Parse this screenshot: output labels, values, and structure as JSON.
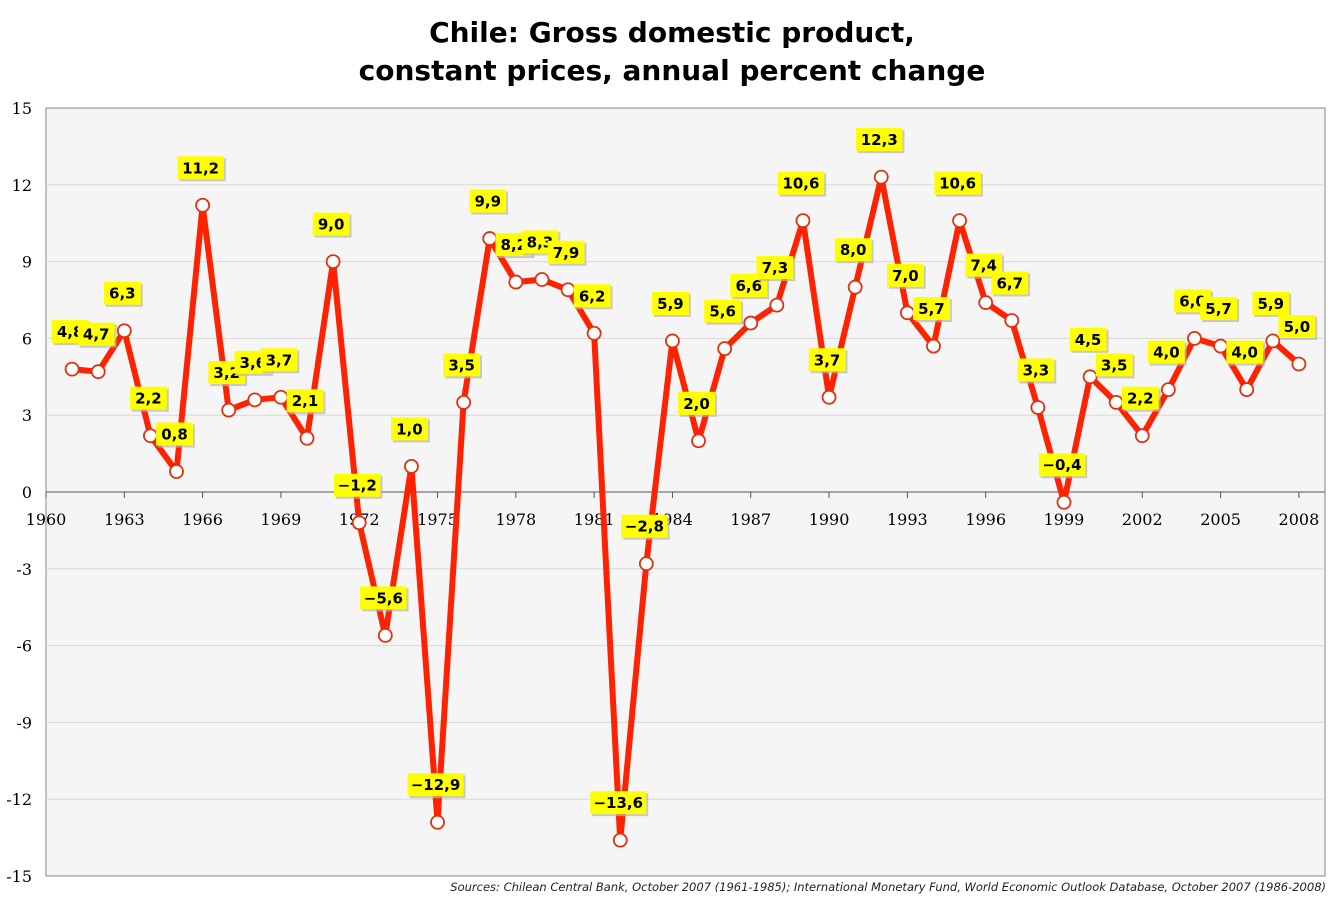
{
  "chart_data": {
    "type": "line",
    "title_line1": "Chile: Gross domestic product,",
    "title_line2": "constant prices, annual percent change",
    "xlabel": "",
    "ylabel": "",
    "xlim": [
      1960,
      2009
    ],
    "ylim": [
      -15,
      15
    ],
    "x_ticks": [
      "1960",
      "1963",
      "1966",
      "1969",
      "1972",
      "1975",
      "1978",
      "1981",
      "1984",
      "1987",
      "1990",
      "1993",
      "1996",
      "1999",
      "2002",
      "2005",
      "2008"
    ],
    "y_ticks": [
      "15",
      "12",
      "9",
      "6",
      "3",
      "0",
      "-3",
      "-6",
      "-9",
      "-12",
      "-15"
    ],
    "grid": true,
    "line_color": "#ff2200",
    "label_bg": "#ffff00",
    "plot_bg": "#f5f5f5",
    "series": [
      {
        "x": [
          1961,
          1962,
          1963,
          1964,
          1965,
          1966,
          1967,
          1968,
          1969,
          1970,
          1971,
          1972,
          1973,
          1974,
          1975,
          1976,
          1977,
          1978,
          1979,
          1980,
          1981,
          1982,
          1983,
          1984,
          1985,
          1986,
          1987,
          1988,
          1989,
          1990,
          1991,
          1992,
          1993,
          1994,
          1995,
          1996,
          1997,
          1998,
          1999,
          2000,
          2001,
          2002,
          2003,
          2004,
          2005,
          2006,
          2007,
          2008
        ],
        "values": [
          4.8,
          4.7,
          6.3,
          2.2,
          0.8,
          11.2,
          3.2,
          3.6,
          3.7,
          2.1,
          9.0,
          -1.2,
          -5.6,
          1.0,
          -12.9,
          3.5,
          9.9,
          8.2,
          8.3,
          7.9,
          6.2,
          -13.6,
          -2.8,
          5.9,
          2.0,
          5.6,
          6.6,
          7.3,
          10.6,
          3.7,
          8.0,
          12.3,
          7.0,
          5.7,
          10.6,
          7.4,
          6.7,
          3.3,
          -0.4,
          4.5,
          3.5,
          2.2,
          4.0,
          6.0,
          5.7,
          4.0,
          5.9,
          5.0
        ],
        "labels": [
          "4,8",
          "4,7",
          "6,3",
          "2,2",
          "0,8",
          "11,2",
          "3,2",
          "3,6",
          "3,7",
          "2,1",
          "9,0",
          "−1,2",
          "−5,6",
          "1,0",
          "−12,9",
          "3,5",
          "9,9",
          "8,2",
          "8,3",
          "7,9",
          "6,2",
          "−13,6",
          "−2,8",
          "5,9",
          "2,0",
          "5,6",
          "6,6",
          "7,3",
          "10,6",
          "3,7",
          "8,0",
          "12,3",
          "7,0",
          "5,7",
          "10,6",
          "7,4",
          "6,7",
          "3,3",
          "−0,4",
          "4,5",
          "3,5",
          "2,2",
          "4,0",
          "6,0",
          "5,7",
          "4,0",
          "5,9",
          "5,0"
        ]
      }
    ],
    "source": "Sources: Chilean Central Bank, October 2007 (1961-1985); International Monetary Fund, World Economic Outlook Database, October 2007 (1986-2008)"
  }
}
